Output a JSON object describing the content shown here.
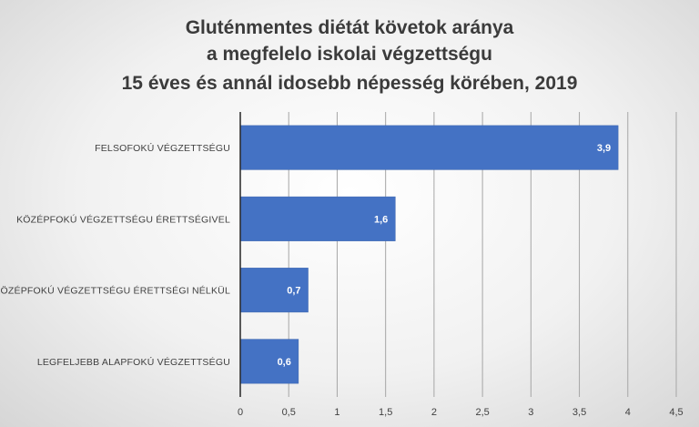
{
  "chart_data": {
    "type": "bar",
    "orientation": "horizontal",
    "title_lines": [
      "Gluténmentes diétát követok aránya",
      "a megfelelo iskolai végzettségu",
      "15 éves és annál idosebb népesség körében, 2019"
    ],
    "categories": [
      "FELSOFOKÚ VÉGZETTSÉGU",
      "KÖZÉPFOKÚ  VÉGZETTSÉGU ÉRETTSÉGIVEL",
      "KÖZÉPFOKÚ VÉGZETTSÉGU ÉRETTSÉGI NÉLKÜL",
      "LEGFELJEBB ALAPFOKÚ VÉGZETTSÉGU"
    ],
    "values": [
      3.9,
      1.6,
      0.7,
      0.6
    ],
    "data_labels": [
      "3,9",
      "1,6",
      "0,7",
      "0,6"
    ],
    "xlim": [
      0,
      4.5
    ],
    "x_ticks": [
      "0",
      "0,5",
      "1",
      "1,5",
      "2",
      "2,5",
      "3",
      "3,5",
      "4",
      "4,5"
    ],
    "grid": "vertical",
    "legend": "none",
    "colors": {
      "bar": "#4472c4",
      "grid": "#a6a6a6",
      "axis": "#262626"
    }
  }
}
